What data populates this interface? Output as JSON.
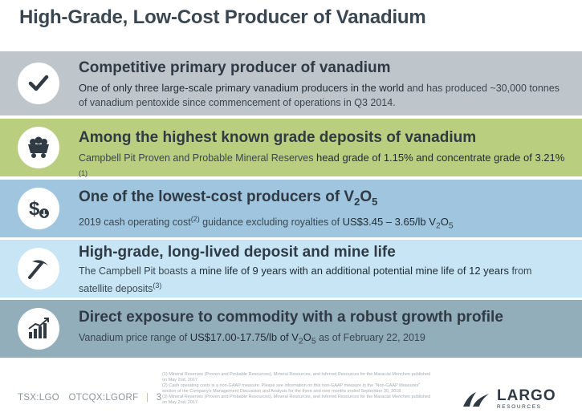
{
  "title": "High-Grade, Low-Cost Producer of Vanadium",
  "items": [
    {
      "icon": "checkmark-icon",
      "heading": "Competitive primary producer of vanadium",
      "desc_a": "One of only three large-scale primary vanadium producers in the world",
      "desc_b": " and has produced ~30,000 tonnes of vanadium pentoxide since commencement of operations in Q3 2014."
    },
    {
      "icon": "mine-cart-icon",
      "heading": "Among the highest known grade deposits of vanadium",
      "desc_a": "Campbell Pit Proven and Probable Mineral Reserves ",
      "desc_b": "head grade of 1.15% and concentrate grade of 3.21%",
      "desc_sup": " (1)"
    },
    {
      "icon": "dollar-coin-icon",
      "heading_pre": "One of the lowest-cost producers of V",
      "heading_sub1": "2",
      "heading_mid": "O",
      "heading_sub2": "5",
      "desc_a": "2019 cash operating cost",
      "desc_sup": "(2)",
      "desc_b": " guidance excluding royalties of ",
      "desc_c": "US$3.45 – 3.65/lb V",
      "desc_sub1": "2",
      "desc_o": "O",
      "desc_sub2": "5"
    },
    {
      "icon": "pickaxe-icon",
      "heading": "High-grade, long-lived deposit and mine life",
      "desc_a": "The Campbell Pit boasts a ",
      "desc_b": "mine life of 9 years with an additional potential mine life of 12 years",
      "desc_c": " from satellite deposits",
      "desc_sup": "(3)"
    },
    {
      "icon": "growth-chart-icon",
      "heading": "Direct exposure to commodity with a robust growth profile",
      "desc_a": "Vanadium price range of ",
      "desc_b": "US$17.00-17.75/lb of V",
      "desc_sub1": "2",
      "desc_o": "O",
      "desc_sub2": "5",
      "desc_c": " as of February 22, 2019"
    }
  ],
  "footer": {
    "tsx": "TSX:LGO",
    "otcqx": "OTCQX:LGORF",
    "page": "3",
    "footnotes": [
      "(1) Mineral Reserves (Proven and Probable Resources), Mineral Resources, and Inferred Resources for the Maracás Menchen published on May 2nd, 2017.",
      "(2) Cash operating costs is a non-GAAP measure. Please see information on this non-GAAP measure in the \"Non-GAAP Measures\" section of the Company's Management Discussion and Analysis for the three and nine months ended September 30, 2018.",
      "(3) Mineral Reserves (Proven and Probable Resources), Mineral Resources, and Inferred Resources for the Maracás Menchen published on May 2nd, 2017."
    ],
    "logo_main": "LARGO",
    "logo_sub": "RESOURCES"
  },
  "colors": {
    "band1": "#bfc6cb",
    "band2": "#b9cf7f",
    "band3": "#9fc6de",
    "band4": "#c7e5f5",
    "band5": "#93aebb",
    "ticker_separator": "#e3c24b"
  }
}
